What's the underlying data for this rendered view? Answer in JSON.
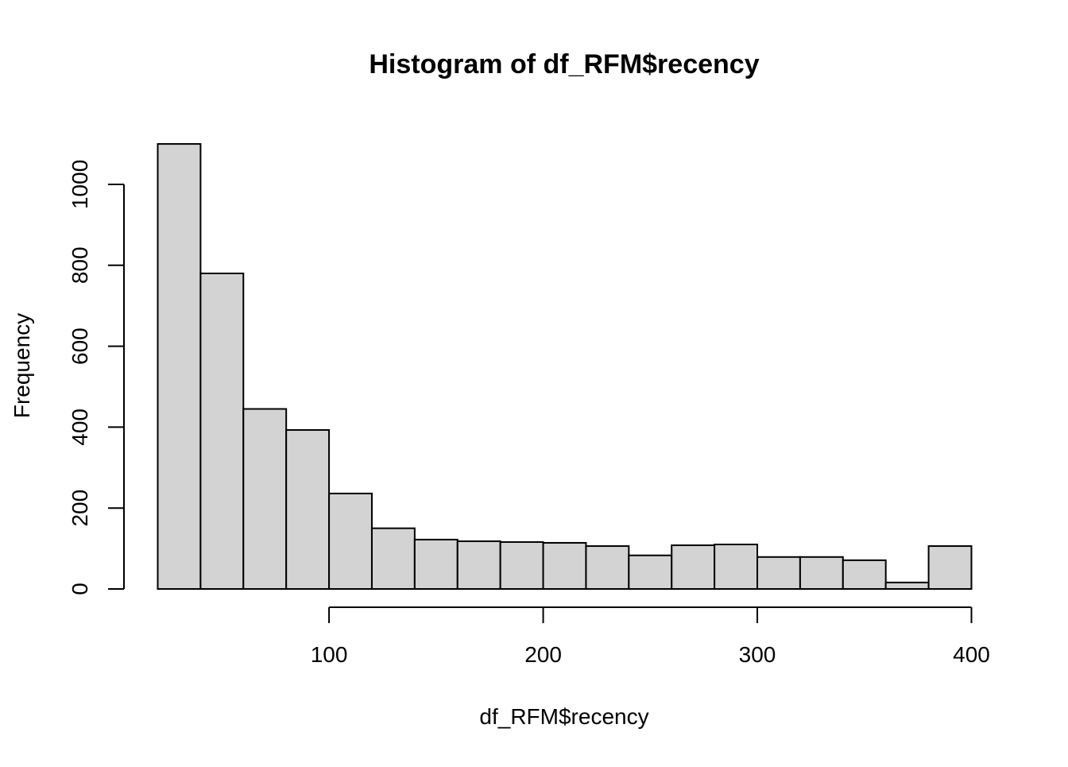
{
  "chart_data": {
    "type": "bar",
    "subtype": "histogram",
    "title": "Histogram of df_RFM$recency",
    "xlabel": "df_RFM$recency",
    "ylabel": "Frequency",
    "bin_width": 20,
    "bins": [
      {
        "start": 20,
        "end": 40,
        "count": 1100
      },
      {
        "start": 40,
        "end": 60,
        "count": 780
      },
      {
        "start": 60,
        "end": 80,
        "count": 445
      },
      {
        "start": 80,
        "end": 100,
        "count": 393
      },
      {
        "start": 100,
        "end": 120,
        "count": 236
      },
      {
        "start": 120,
        "end": 140,
        "count": 150
      },
      {
        "start": 140,
        "end": 160,
        "count": 122
      },
      {
        "start": 160,
        "end": 180,
        "count": 118
      },
      {
        "start": 180,
        "end": 200,
        "count": 116
      },
      {
        "start": 200,
        "end": 220,
        "count": 114
      },
      {
        "start": 220,
        "end": 240,
        "count": 106
      },
      {
        "start": 240,
        "end": 260,
        "count": 83
      },
      {
        "start": 260,
        "end": 280,
        "count": 108
      },
      {
        "start": 280,
        "end": 300,
        "count": 110
      },
      {
        "start": 300,
        "end": 320,
        "count": 79
      },
      {
        "start": 320,
        "end": 340,
        "count": 79
      },
      {
        "start": 340,
        "end": 360,
        "count": 71
      },
      {
        "start": 360,
        "end": 380,
        "count": 16
      },
      {
        "start": 380,
        "end": 400,
        "count": 106
      }
    ],
    "xlim": [
      20,
      400
    ],
    "ylim": [
      0,
      1100
    ],
    "x_ticks": [
      100,
      200,
      300,
      400
    ],
    "x_tick_labels": [
      "100",
      "200",
      "300",
      "400"
    ],
    "y_ticks": [
      0,
      200,
      400,
      600,
      800,
      1000
    ],
    "y_tick_labels": [
      "0",
      "200",
      "400",
      "600",
      "800",
      "1000"
    ],
    "bar_fill": "#d3d3d3",
    "bar_stroke": "#000000",
    "grid": false,
    "legend": "none"
  }
}
